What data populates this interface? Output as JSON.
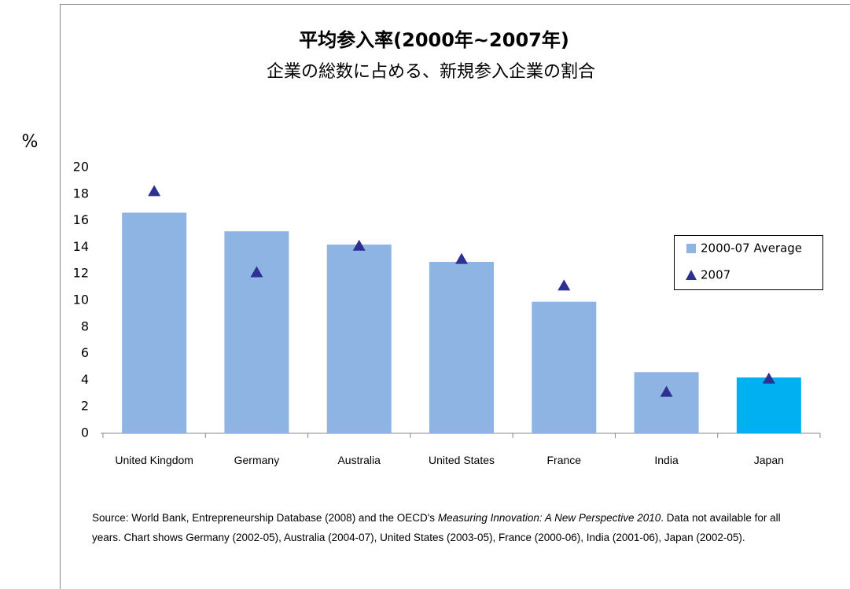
{
  "chart_data": {
    "type": "bar",
    "title": "平均参入率(2000年~2007年)",
    "subtitle": "企業の総数に占める、新規参入企業の割合",
    "y_label": "%",
    "categories": [
      "United Kingdom",
      "Germany",
      "Australia",
      "United States",
      "France",
      "India",
      "Japan"
    ],
    "series": [
      {
        "name": "2000-07 Average",
        "type": "bar",
        "color": "#8db4e2",
        "colors": [
          "#8db4e2",
          "#8db4e2",
          "#8db4e2",
          "#8db4e2",
          "#8db4e2",
          "#8db4e2",
          "#00b0f0"
        ],
        "values": [
          16.6,
          15.2,
          14.2,
          12.9,
          9.9,
          4.6,
          4.2
        ]
      },
      {
        "name": "2007",
        "type": "marker",
        "color": "#2e3192",
        "values": [
          18.2,
          12.1,
          14.1,
          13.1,
          11.1,
          3.1,
          4.1
        ]
      }
    ],
    "ylim": [
      0,
      20
    ],
    "yticks": [
      0,
      2,
      4,
      6,
      8,
      10,
      12,
      14,
      16,
      18,
      20
    ],
    "grid": false,
    "legend": "right",
    "source": [
      "Source: World Bank, Entrepreneurship Database (2008) and the OECD's",
      "Measuring Innovation: A New Perspective 2010",
      ". Data not available for all years. Chart shows Germany (2002-05), Australia (2004-07), United States (2003-05), France (2000-06), India (2001-06), Japan (2002-05)."
    ]
  }
}
